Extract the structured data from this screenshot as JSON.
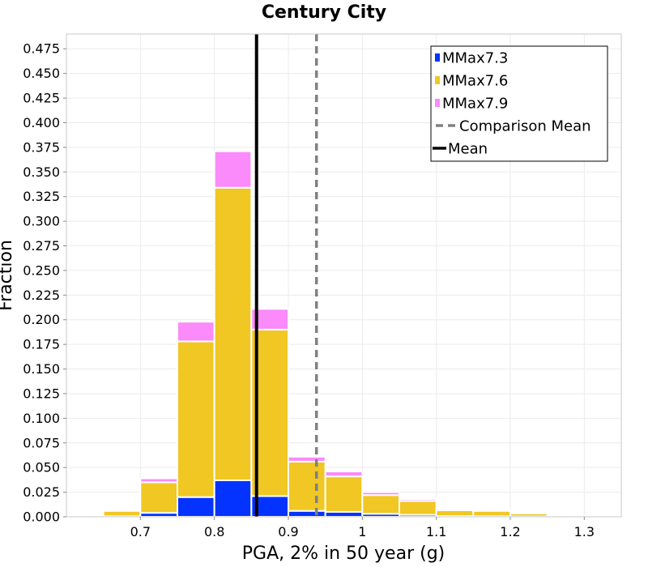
{
  "chart_data": {
    "type": "bar",
    "stacked": true,
    "title": "Century City",
    "xlabel": "PGA, 2% in 50 year (g)",
    "ylabel": "Fraction",
    "xlim": [
      0.6,
      1.35
    ],
    "ylim": [
      0,
      0.49
    ],
    "x_ticks": [
      "0.7",
      "0.8",
      "0.9",
      "1",
      "1.1",
      "1.2",
      "1.3"
    ],
    "y_ticks": [
      "0.000",
      "0.025",
      "0.050",
      "0.075",
      "0.100",
      "0.125",
      "0.150",
      "0.175",
      "0.200",
      "0.225",
      "0.250",
      "0.275",
      "0.300",
      "0.325",
      "0.350",
      "0.375",
      "0.400",
      "0.425",
      "0.450",
      "0.475"
    ],
    "grid": true,
    "legend_position": "top-right",
    "bin_centers": [
      0.625,
      0.675,
      0.725,
      0.775,
      0.825,
      0.875,
      0.925,
      0.975,
      1.025,
      1.075,
      1.125,
      1.175,
      1.225,
      1.275,
      1.325
    ],
    "bin_width": 0.05,
    "series": [
      {
        "name": "MMax7.3",
        "color": "#0433ff",
        "values": [
          0.0,
          0.0005,
          0.004,
          0.02,
          0.037,
          0.021,
          0.006,
          0.005,
          0.003,
          0.002,
          0.0007,
          0.0005,
          0.0003,
          0.0001,
          0.0
        ]
      },
      {
        "name": "MMax7.6",
        "color": "#f0c723",
        "values": [
          0.0005,
          0.0055,
          0.031,
          0.158,
          0.297,
          0.169,
          0.05,
          0.036,
          0.019,
          0.014,
          0.006,
          0.0055,
          0.0032,
          0.0008,
          0.0002
        ]
      },
      {
        "name": "MMax7.9",
        "color": "#fb8afa",
        "values": [
          0.0,
          0.001,
          0.004,
          0.02,
          0.037,
          0.021,
          0.005,
          0.005,
          0.003,
          0.002,
          0.001,
          0.001,
          0.0005,
          0.0001,
          0.0
        ]
      }
    ],
    "lines": [
      {
        "name": "Comparison Mean",
        "x": 0.938,
        "color": "#808080",
        "style": "dashed"
      },
      {
        "name": "Mean",
        "x": 0.857,
        "color": "#000000",
        "style": "solid"
      }
    ]
  }
}
